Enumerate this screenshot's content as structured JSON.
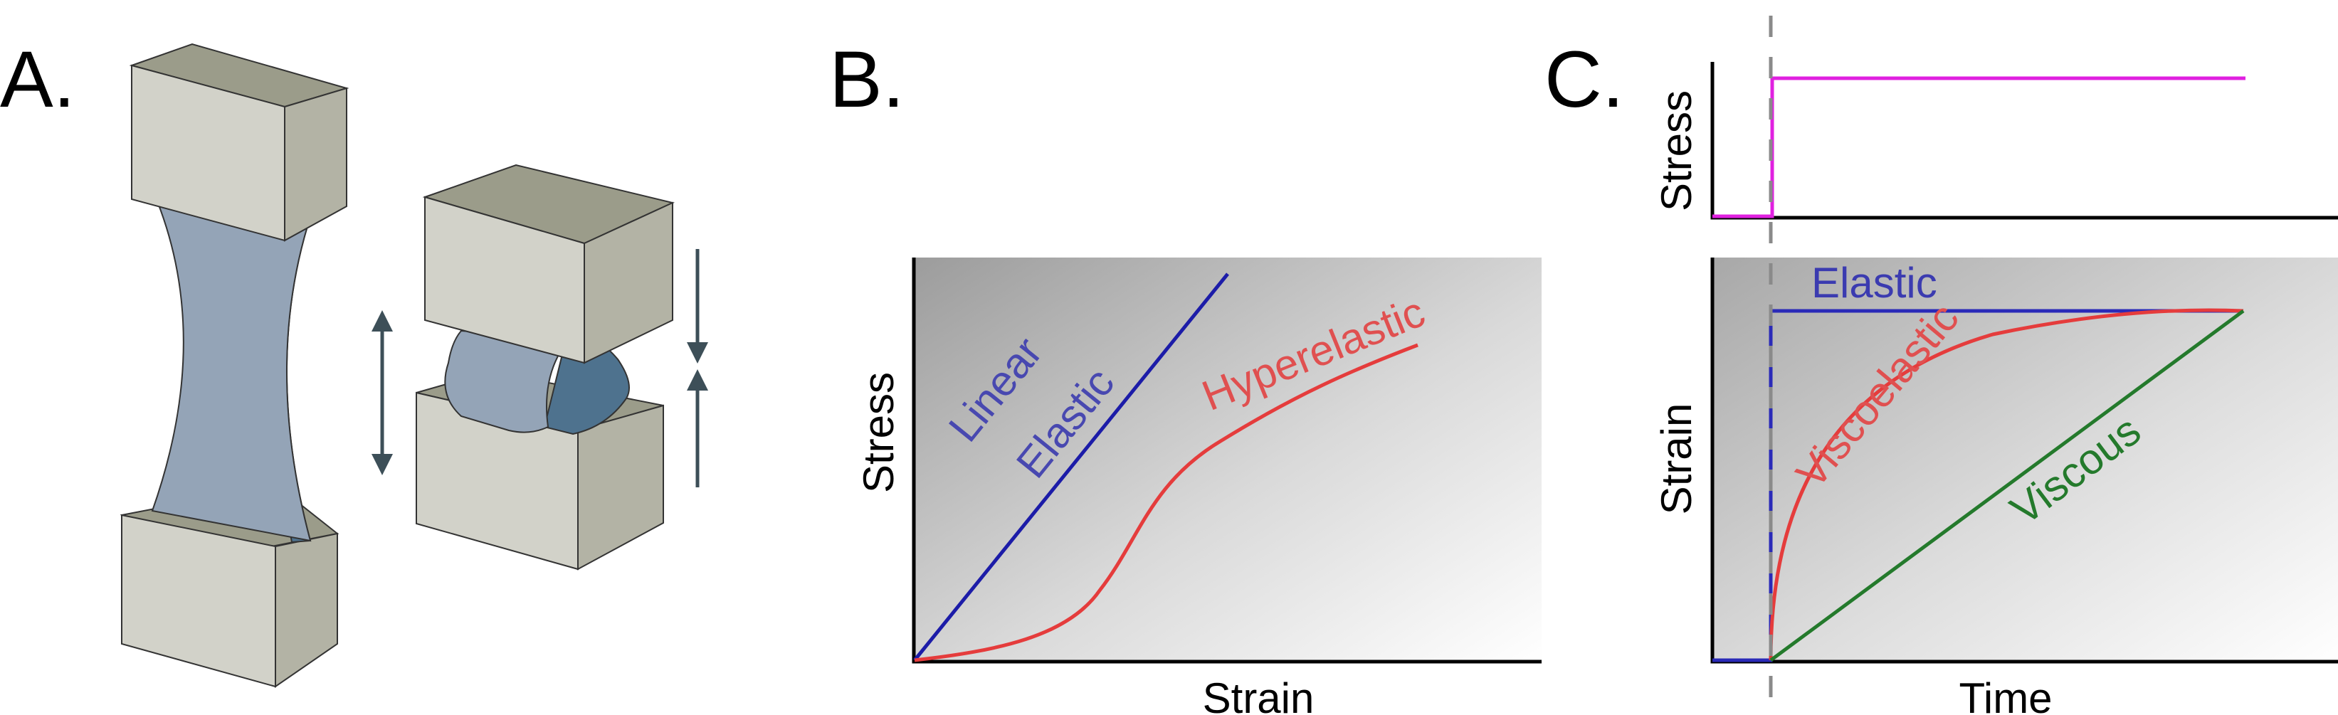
{
  "panels": {
    "a": {
      "letter": "A."
    },
    "b": {
      "letter": "B.",
      "xlabel": "Strain",
      "ylabel": "Stress",
      "curves": {
        "linear": {
          "line1": "Linear",
          "line2": "Elastic",
          "color": "#1c1ca8"
        },
        "hyper": {
          "label": "Hyperelastic",
          "color": "#e53c3c"
        }
      }
    },
    "c": {
      "letter": "C.",
      "top_ylabel": "Stress",
      "bottom_ylabel": "Strain",
      "xlabel": "Time",
      "curves": {
        "stress_step": {
          "color": "#e020e0"
        },
        "elastic": {
          "label": "Elastic",
          "color": "#2a2ab8"
        },
        "viscoelastic": {
          "label": "Viscoelastic",
          "color": "#e53c3c"
        },
        "viscous": {
          "label": "Viscous",
          "color": "#247a2c"
        }
      }
    }
  },
  "colors": {
    "block_front": "#d2d2c9",
    "block_top": "#9b9c8a",
    "block_side": "#b3b3a5",
    "specimen": "#94a4b7",
    "specimen_dark": "#4e728e",
    "arrow": "#3d4f58",
    "panel_bg_dark": "#9c9c9c",
    "panel_bg_light": "#ffffff"
  }
}
